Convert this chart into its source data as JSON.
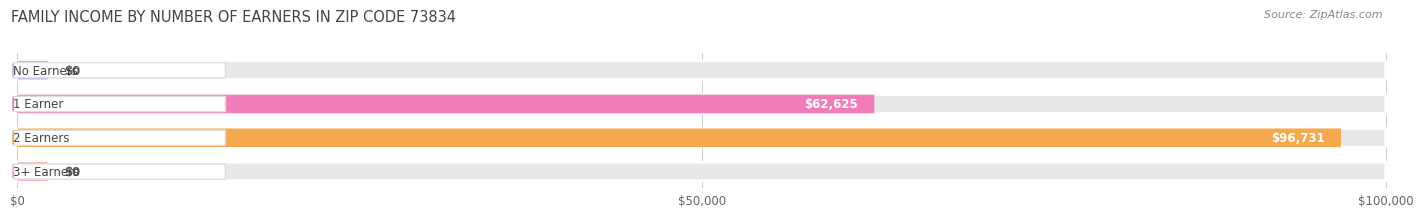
{
  "title": "FAMILY INCOME BY NUMBER OF EARNERS IN ZIP CODE 73834",
  "source": "Source: ZipAtlas.com",
  "categories": [
    "No Earners",
    "1 Earner",
    "2 Earners",
    "3+ Earners"
  ],
  "values": [
    0,
    62625,
    96731,
    0
  ],
  "bar_colors": [
    "#b8b4e8",
    "#f07cb8",
    "#f5a94e",
    "#f4aaaa"
  ],
  "bar_labels": [
    "$0",
    "$62,625",
    "$96,731",
    "$0"
  ],
  "xlim_max": 100000,
  "xticks": [
    0,
    50000,
    100000
  ],
  "xtick_labels": [
    "$0",
    "$50,000",
    "$100,000"
  ],
  "background_color": "#ffffff",
  "bar_bg_color": "#e8e8e8",
  "title_color": "#444444",
  "title_fontsize": 10.5,
  "source_fontsize": 8,
  "tick_fontsize": 8.5,
  "label_fontsize": 8.5,
  "value_fontsize": 8.5
}
